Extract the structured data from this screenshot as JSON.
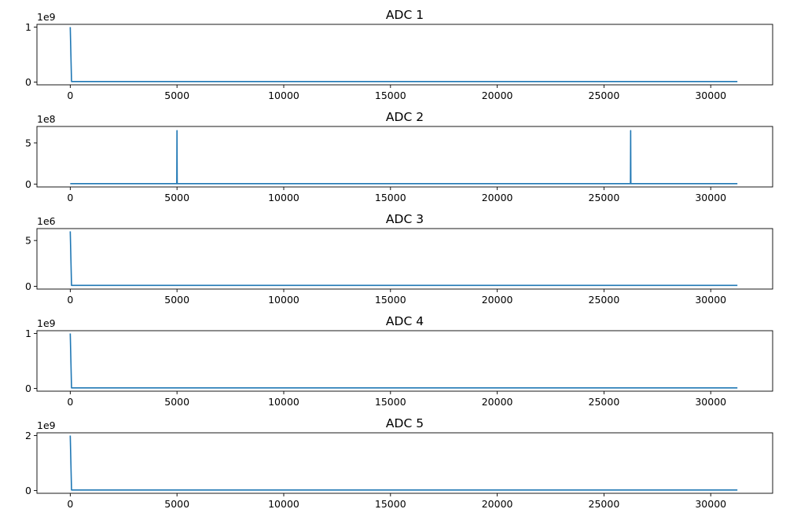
{
  "chart_data": [
    {
      "type": "line",
      "title": "ADC 1",
      "xlim": [
        -1560,
        32900
      ],
      "ylim": [
        -0.05,
        1.05
      ],
      "y_exponent_label": "1e9",
      "x_ticks": [
        0,
        5000,
        10000,
        15000,
        20000,
        25000,
        30000
      ],
      "x_tick_labels": [
        "0",
        "5000",
        "10000",
        "15000",
        "20000",
        "25000",
        "30000"
      ],
      "y_ticks": [
        0,
        1
      ],
      "y_tick_labels": [
        "0",
        "1"
      ],
      "grid": false,
      "line_color": "#1f77b4",
      "series": [
        {
          "x": [
            0,
            60,
            31250
          ],
          "y": [
            1.0,
            0.01,
            0.01
          ]
        }
      ]
    },
    {
      "type": "line",
      "title": "ADC 2",
      "xlim": [
        -1560,
        32900
      ],
      "ylim": [
        -0.35,
        7.0
      ],
      "y_exponent_label": "1e8",
      "x_ticks": [
        0,
        5000,
        10000,
        15000,
        20000,
        25000,
        30000
      ],
      "x_tick_labels": [
        "0",
        "5000",
        "10000",
        "15000",
        "20000",
        "25000",
        "30000"
      ],
      "y_ticks": [
        0,
        5
      ],
      "y_tick_labels": [
        "0",
        "5"
      ],
      "grid": false,
      "line_color": "#1f77b4",
      "series": [
        {
          "x": [
            0,
            4990,
            5000,
            5010,
            26240,
            26250,
            26260,
            31250
          ],
          "y": [
            0.05,
            0.05,
            6.5,
            0.05,
            0.05,
            6.5,
            0.05,
            0.05
          ]
        }
      ]
    },
    {
      "type": "line",
      "title": "ADC 3",
      "xlim": [
        -1560,
        32900
      ],
      "ylim": [
        -0.3,
        6.3
      ],
      "y_exponent_label": "1e6",
      "x_ticks": [
        0,
        5000,
        10000,
        15000,
        20000,
        25000,
        30000
      ],
      "x_tick_labels": [
        "0",
        "5000",
        "10000",
        "15000",
        "20000",
        "25000",
        "30000"
      ],
      "y_ticks": [
        0,
        5
      ],
      "y_tick_labels": [
        "0",
        "5"
      ],
      "grid": false,
      "line_color": "#1f77b4",
      "series": [
        {
          "x": [
            0,
            60,
            31250
          ],
          "y": [
            6.0,
            0.1,
            0.1
          ]
        }
      ]
    },
    {
      "type": "line",
      "title": "ADC 4",
      "xlim": [
        -1560,
        32900
      ],
      "ylim": [
        -0.05,
        1.05
      ],
      "y_exponent_label": "1e9",
      "x_ticks": [
        0,
        5000,
        10000,
        15000,
        20000,
        25000,
        30000
      ],
      "x_tick_labels": [
        "0",
        "5000",
        "10000",
        "15000",
        "20000",
        "25000",
        "30000"
      ],
      "y_ticks": [
        0,
        1
      ],
      "y_tick_labels": [
        "0",
        "1"
      ],
      "grid": false,
      "line_color": "#1f77b4",
      "series": [
        {
          "x": [
            0,
            60,
            31250
          ],
          "y": [
            1.0,
            0.01,
            0.01
          ]
        }
      ]
    },
    {
      "type": "line",
      "title": "ADC 5",
      "xlim": [
        -1560,
        32900
      ],
      "ylim": [
        -0.1,
        2.1
      ],
      "y_exponent_label": "1e9",
      "x_ticks": [
        0,
        5000,
        10000,
        15000,
        20000,
        25000,
        30000
      ],
      "x_tick_labels": [
        "0",
        "5000",
        "10000",
        "15000",
        "20000",
        "25000",
        "30000"
      ],
      "y_ticks": [
        0,
        2
      ],
      "y_tick_labels": [
        "0",
        "2"
      ],
      "grid": false,
      "line_color": "#1f77b4",
      "series": [
        {
          "x": [
            0,
            60,
            31250
          ],
          "y": [
            2.0,
            0.02,
            0.02
          ]
        }
      ]
    }
  ]
}
